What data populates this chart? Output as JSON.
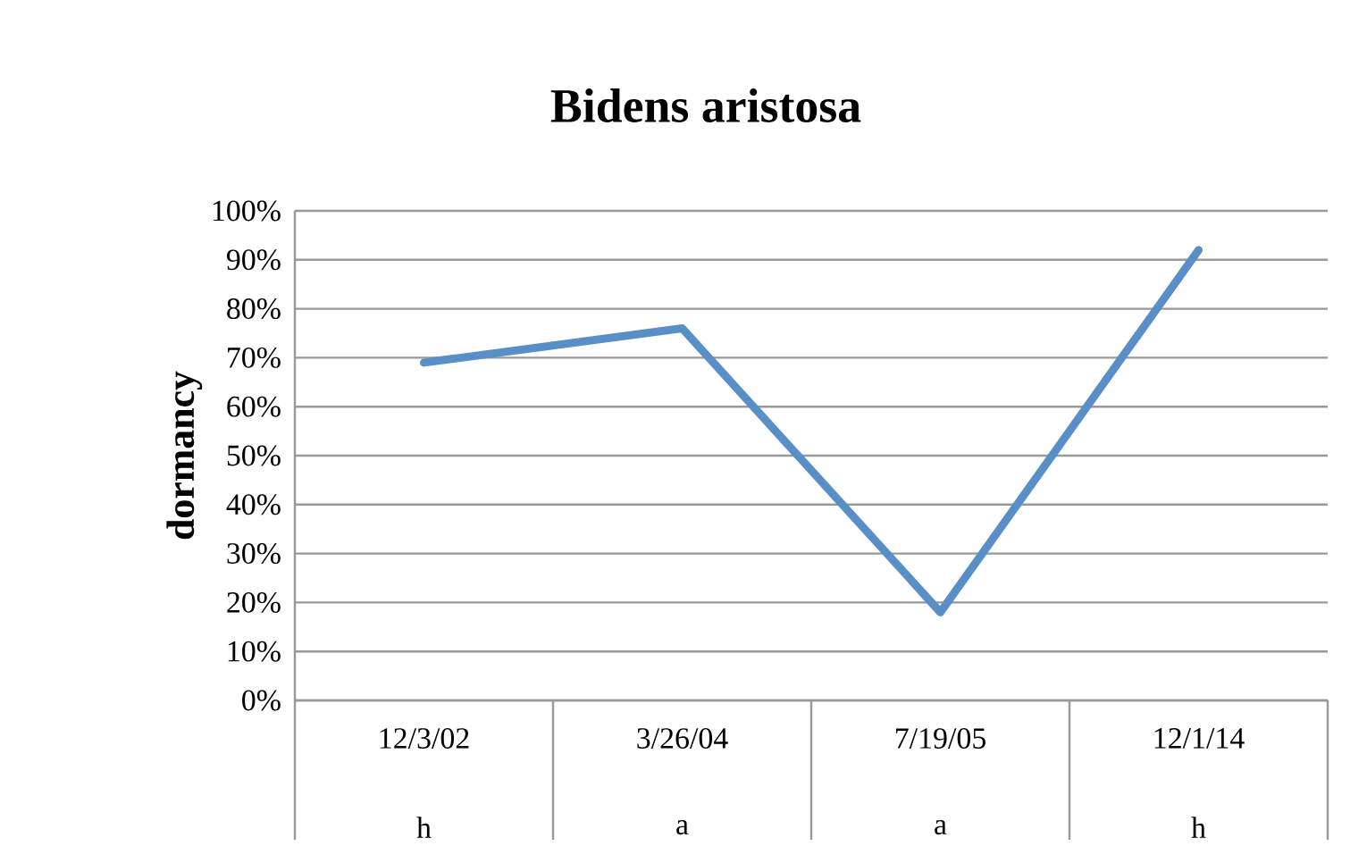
{
  "chart_data": {
    "type": "line",
    "title": "Bidens aristosa",
    "ylabel": "dormancy",
    "categories": [
      "12/3/02",
      "3/26/04",
      "7/19/05",
      "12/1/14"
    ],
    "annotations": [
      "h",
      "a",
      "a",
      "h"
    ],
    "values": [
      69,
      76,
      18,
      92
    ],
    "color": "#5a8ec6",
    "ylim": [
      0,
      100
    ],
    "yticks": [
      {
        "value": 0,
        "label": "0%"
      },
      {
        "value": 10,
        "label": "10%"
      },
      {
        "value": 20,
        "label": "20%"
      },
      {
        "value": 30,
        "label": "30%"
      },
      {
        "value": 40,
        "label": "40%"
      },
      {
        "value": 50,
        "label": "50%"
      },
      {
        "value": 60,
        "label": "60%"
      },
      {
        "value": 70,
        "label": "70%"
      },
      {
        "value": 80,
        "label": "80%"
      },
      {
        "value": 90,
        "label": "90%"
      },
      {
        "value": 100,
        "label": "100%"
      }
    ],
    "grid": "y"
  }
}
